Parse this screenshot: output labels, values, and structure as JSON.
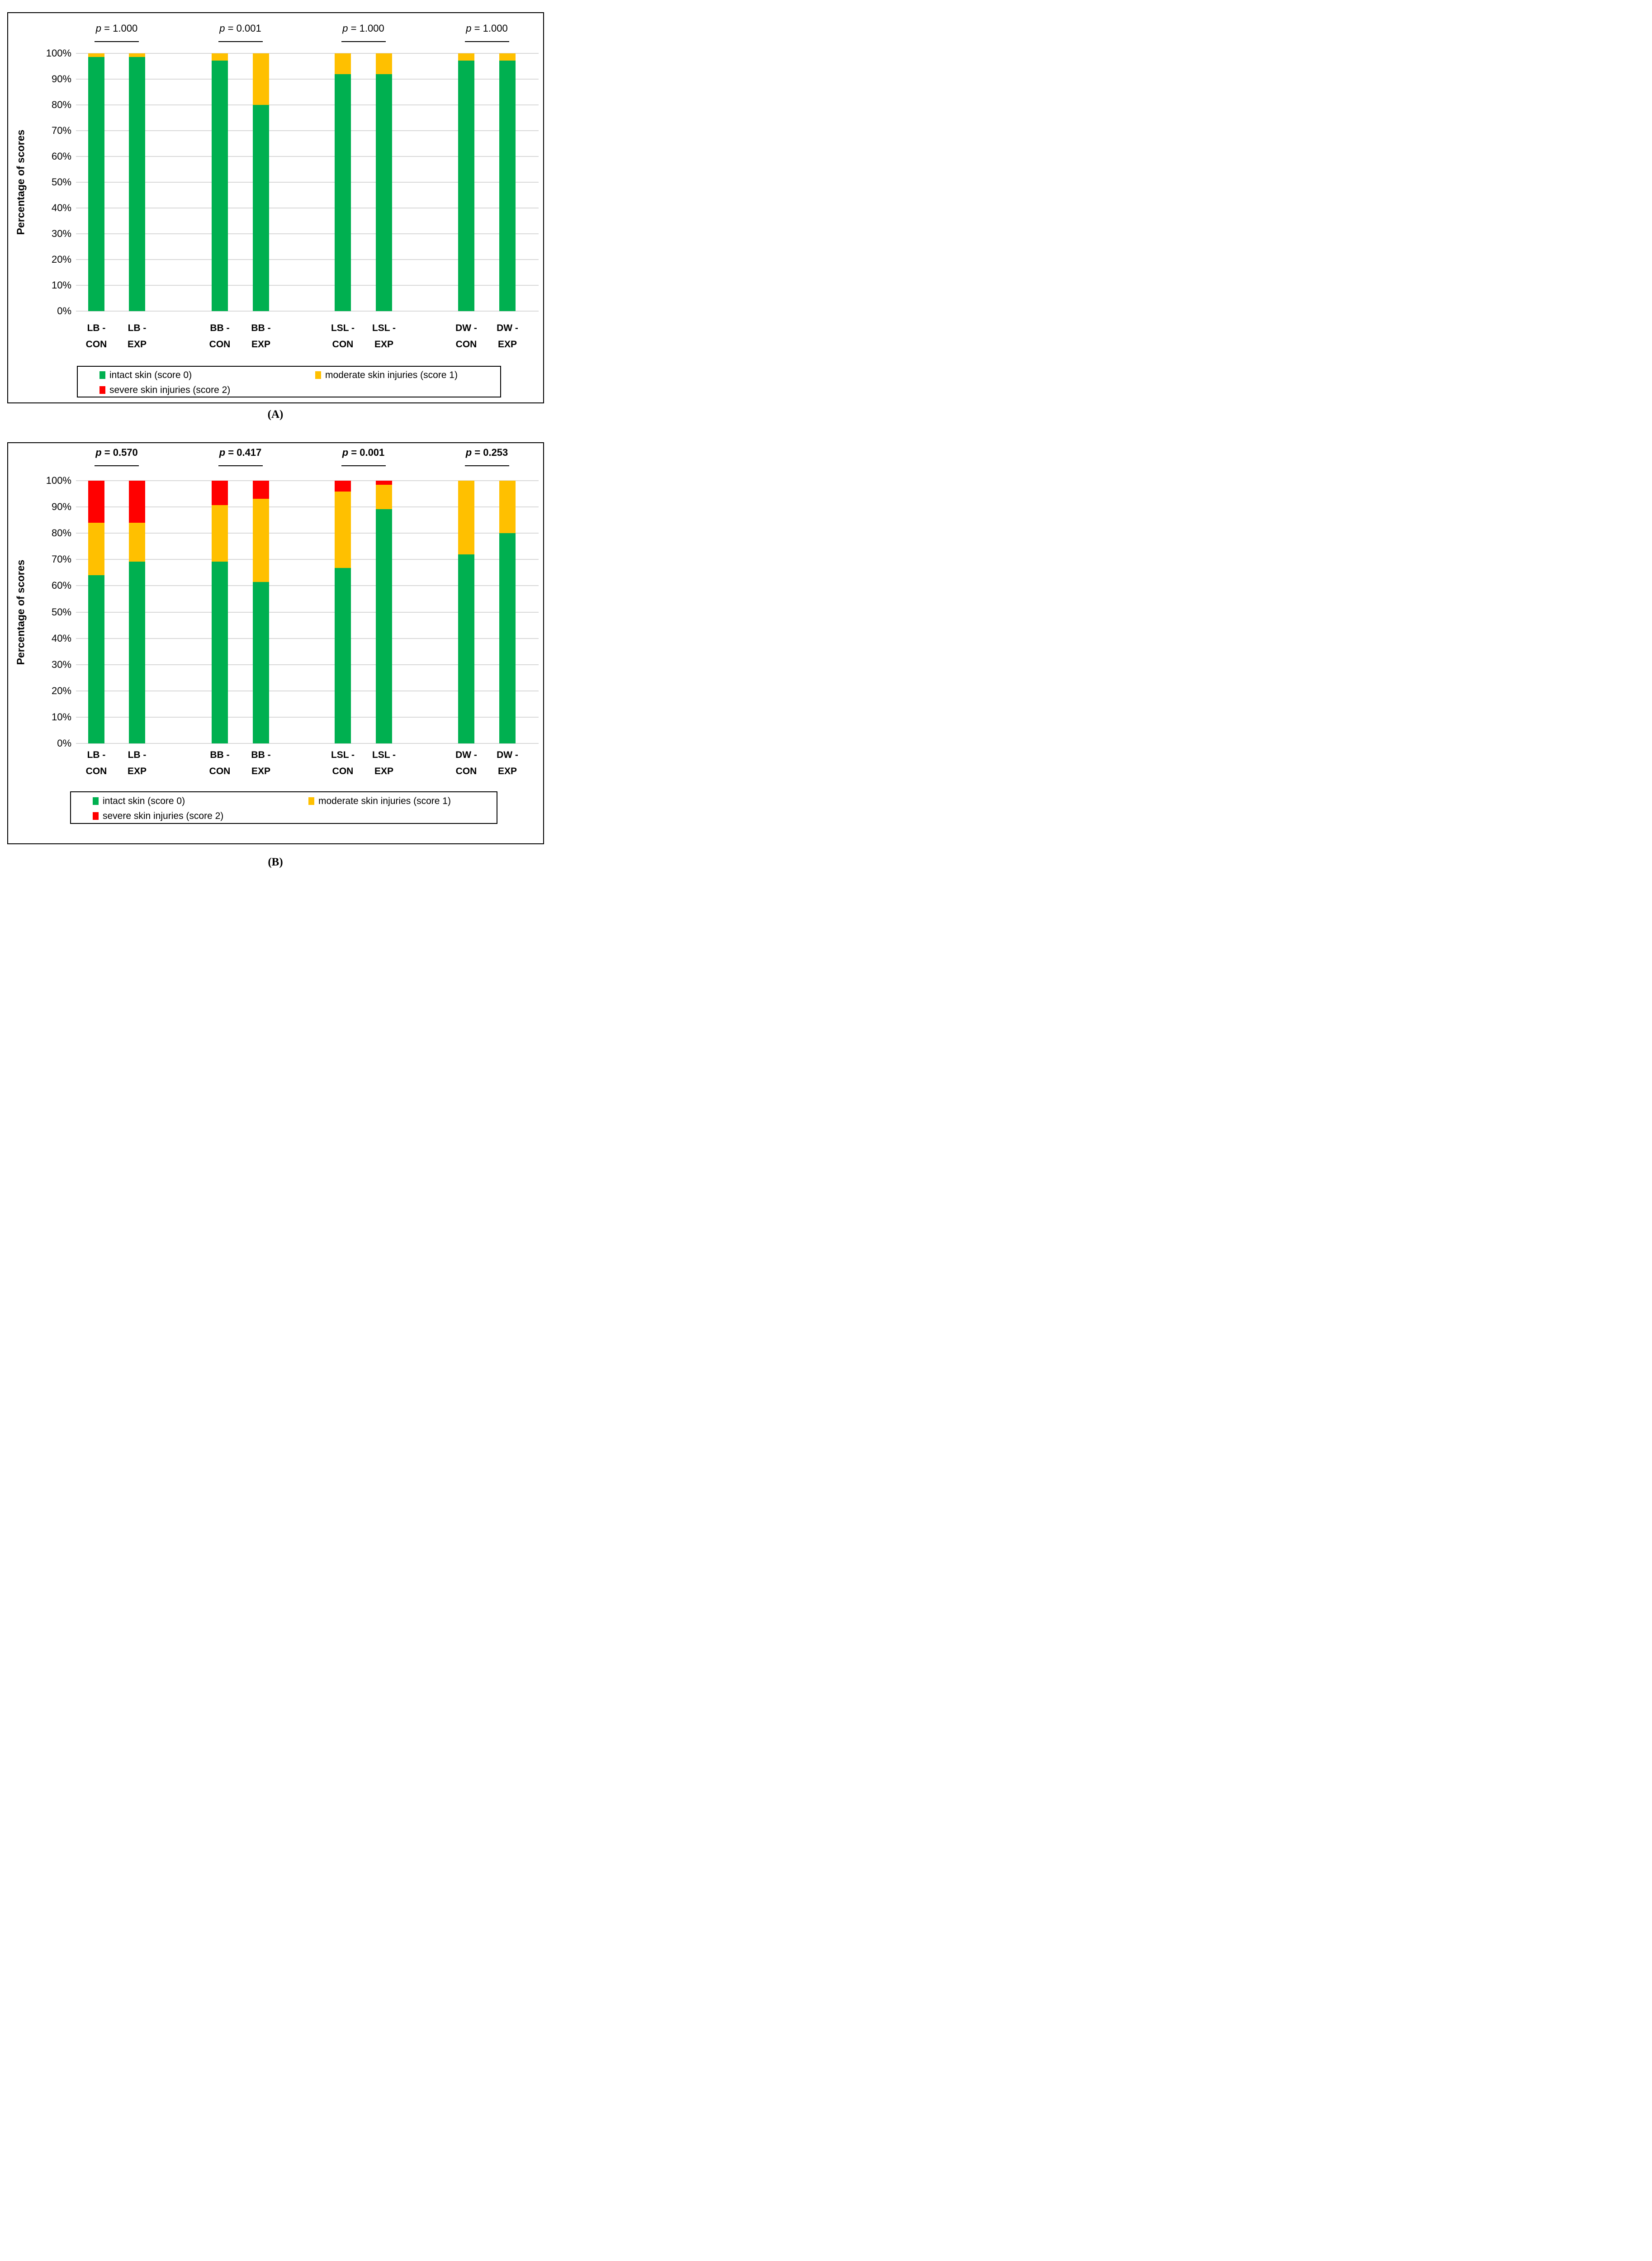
{
  "figure": {
    "background_color": "#FFFFFF",
    "grid_color": "#D9D9D9",
    "border_color": "#000000"
  },
  "chart_data": [
    {
      "type": "bar",
      "stacked": true,
      "panel_caption": "(A)",
      "ylabel": "Percentage of scores",
      "ylim": [
        0,
        100
      ],
      "ytick_step": 10,
      "grid": true,
      "legend_position": "bottom",
      "yticklabels": [
        "0%",
        "10%",
        "20%",
        "30%",
        "40%",
        "50%",
        "60%",
        "70%",
        "80%",
        "90%",
        "100%"
      ],
      "categories": [
        {
          "line1": "LB -",
          "line2": "CON"
        },
        {
          "line1": "LB -",
          "line2": "EXP"
        },
        {
          "line1": "BB -",
          "line2": "CON"
        },
        {
          "line1": "BB -",
          "line2": "EXP"
        },
        {
          "line1": "LSL -",
          "line2": "CON"
        },
        {
          "line1": "LSL -",
          "line2": "EXP"
        },
        {
          "line1": "DW -",
          "line2": "CON"
        },
        {
          "line1": "DW -",
          "line2": "EXP"
        }
      ],
      "series": [
        {
          "name": "intact skin (score 0)",
          "color": "#00B050",
          "values": [
            98.6,
            98.6,
            97.2,
            80,
            92,
            92,
            97.2,
            97.2
          ]
        },
        {
          "name": "moderate skin injuries (score 1)",
          "color": "#FFC000",
          "values": [
            1.4,
            1.4,
            2.8,
            20,
            8,
            8,
            2.8,
            2.8
          ]
        },
        {
          "name": "severe skin injuries (score 2)",
          "color": "#FF0000",
          "values": [
            0,
            0,
            0,
            0,
            0,
            0,
            0,
            0
          ]
        }
      ],
      "p_values": [
        "p = 1.000",
        "p = 0.001",
        "p = 1.000",
        "p = 1.000"
      ]
    },
    {
      "type": "bar",
      "stacked": true,
      "panel_caption": "(B)",
      "ylabel": "Percentage of scores",
      "ylim": [
        0,
        100
      ],
      "ytick_step": 10,
      "grid": true,
      "legend_position": "bottom",
      "yticklabels": [
        "0%",
        "10%",
        "20%",
        "30%",
        "40%",
        "50%",
        "60%",
        "70%",
        "80%",
        "90%",
        "100%"
      ],
      "categories": [
        {
          "line1": "LB -",
          "line2": "CON"
        },
        {
          "line1": "LB -",
          "line2": "EXP"
        },
        {
          "line1": "BB -",
          "line2": "CON"
        },
        {
          "line1": "BB -",
          "line2": "EXP"
        },
        {
          "line1": "LSL -",
          "line2": "CON"
        },
        {
          "line1": "LSL -",
          "line2": "EXP"
        },
        {
          "line1": "DW -",
          "line2": "CON"
        },
        {
          "line1": "DW -",
          "line2": "EXP"
        }
      ],
      "series": [
        {
          "name": "intact skin (score 0)",
          "color": "#00B050",
          "values": [
            64,
            69.2,
            69.2,
            61.5,
            66.7,
            89.2,
            72,
            80
          ]
        },
        {
          "name": "moderate skin injuries (score 1)",
          "color": "#FFC000",
          "values": [
            20,
            14.8,
            21.5,
            31.7,
            29.1,
            9.2,
            28,
            20
          ]
        },
        {
          "name": "severe skin injuries (score 2)",
          "color": "#FF0000",
          "values": [
            16,
            16,
            9.3,
            6.8,
            4.2,
            1.6,
            0,
            0
          ]
        }
      ],
      "p_values": [
        "p = 0.570",
        "p = 0.417",
        "p = 0.001",
        "p = 0.253"
      ]
    }
  ]
}
